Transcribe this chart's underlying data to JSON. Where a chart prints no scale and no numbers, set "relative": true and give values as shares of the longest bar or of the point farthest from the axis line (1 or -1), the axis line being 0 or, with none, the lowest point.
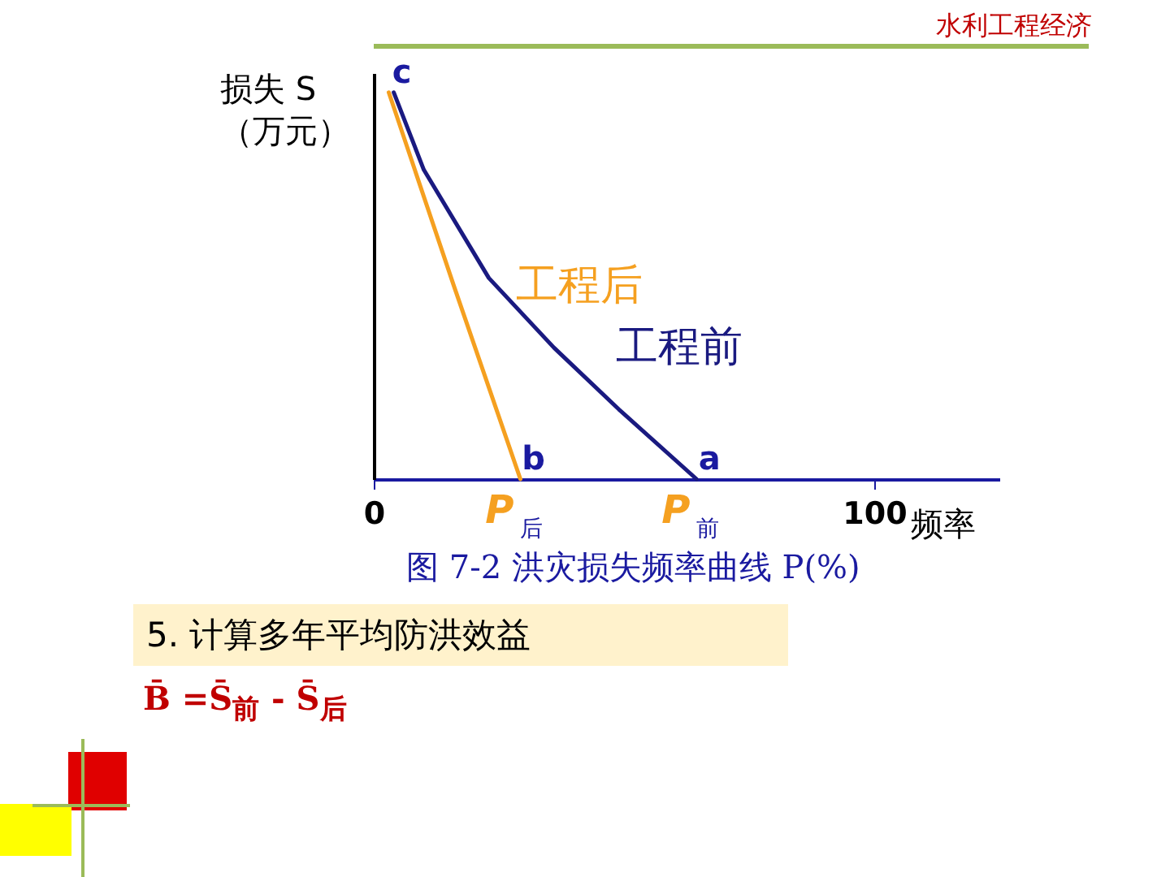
{
  "chart_data": {
    "type": "line",
    "title": "图 7-2  洪灾损失频率曲线 P(%)",
    "xlabel": "频率",
    "ylabel": "损失 S（万元）",
    "relative": true,
    "xlim": [
      0,
      125
    ],
    "xticks": [
      0,
      100
    ],
    "grid": false,
    "legend": false,
    "marker": "none",
    "line_style": "solid",
    "series": [
      {
        "name": "工程前",
        "color": "#1a1a80",
        "x": [
          4,
          10,
          23,
          36,
          49,
          64.5
        ],
        "values": [
          1,
          0.8,
          0.52,
          0.34,
          0.18,
          0
        ]
      },
      {
        "name": "工程后",
        "color": "#f5a020",
        "x": [
          3,
          16,
          29.3
        ],
        "values": [
          1,
          0.5,
          0
        ]
      }
    ],
    "annotations": [
      "水利工程经济",
      "5. 计算多年平均防洪效益",
      "B̄ =S̄$_{前}$ - S̄$_{后}$",
      {
        "text": "c",
        "x": 3,
        "y": 1
      },
      {
        "text": "b",
        "x": 29.3,
        "y": 0
      },
      {
        "text": "a",
        "x": 64.5,
        "y": 0
      },
      {
        "text": "P$_{后}$",
        "x": 29.3,
        "y": 0
      },
      {
        "text": "P$_{前}$",
        "x": 64.5,
        "y": 0
      }
    ]
  }
}
